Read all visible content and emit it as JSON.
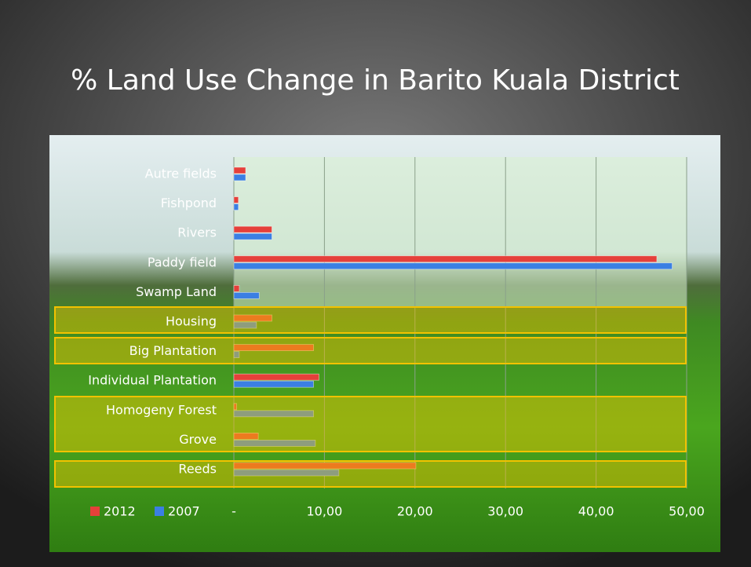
{
  "chart_data": {
    "type": "barh",
    "title": "% Land Use Change in Barito Kuala District",
    "categories": [
      "Autre fields",
      "Fishpond",
      "Rivers",
      "Paddy field",
      "Swamp Land",
      "Housing",
      "Big Plantation",
      "Individual Plantation",
      "Homogeny Forest",
      "Grove",
      "Reeds"
    ],
    "series": [
      {
        "name": "2012",
        "color": "#e5403a",
        "values": [
          1.3,
          0.5,
          4.2,
          46.7,
          0.6,
          4.2,
          8.8,
          9.4,
          0.3,
          2.7,
          20.1
        ]
      },
      {
        "name": "2007",
        "color": "#3b7fe3",
        "values": [
          1.3,
          0.5,
          4.2,
          48.4,
          2.8,
          2.5,
          0.6,
          8.8,
          8.8,
          9.0,
          11.6
        ]
      }
    ],
    "xlim": [
      0,
      50
    ],
    "xticks": [
      {
        "value": 0,
        "label": "-"
      },
      {
        "value": 10,
        "label": "10,00"
      },
      {
        "value": 20,
        "label": "20,00"
      },
      {
        "value": 30,
        "label": "30,00"
      },
      {
        "value": 40,
        "label": "40,00"
      },
      {
        "value": 50,
        "label": "50,00"
      }
    ],
    "grid": true,
    "legend": "bottom-left"
  }
}
